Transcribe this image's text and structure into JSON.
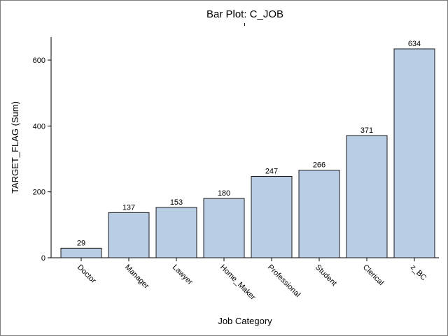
{
  "chart_data": {
    "type": "bar",
    "title": "Bar Plot: C_JOB",
    "xlabel": "Job Category",
    "ylabel": "TARGET_FLAG (Sum)",
    "categories": [
      "Doctor",
      "Manager",
      "Lawyer",
      "Home_Maker",
      "Professional",
      "Student",
      "Clerical",
      "z_BC"
    ],
    "series": [
      {
        "values": [
          29,
          137,
          153,
          180,
          247,
          266,
          371,
          634
        ]
      }
    ],
    "data_labels": [
      "29",
      "137",
      "153",
      "180",
      "247",
      "266",
      "371",
      "634"
    ],
    "y_ticks": [
      0,
      200,
      400,
      600
    ],
    "ylim": [
      0,
      670
    ],
    "grid": false,
    "legend": "none",
    "bar_color": "#b9cde5",
    "bar_outline": "#1a1a1a"
  }
}
